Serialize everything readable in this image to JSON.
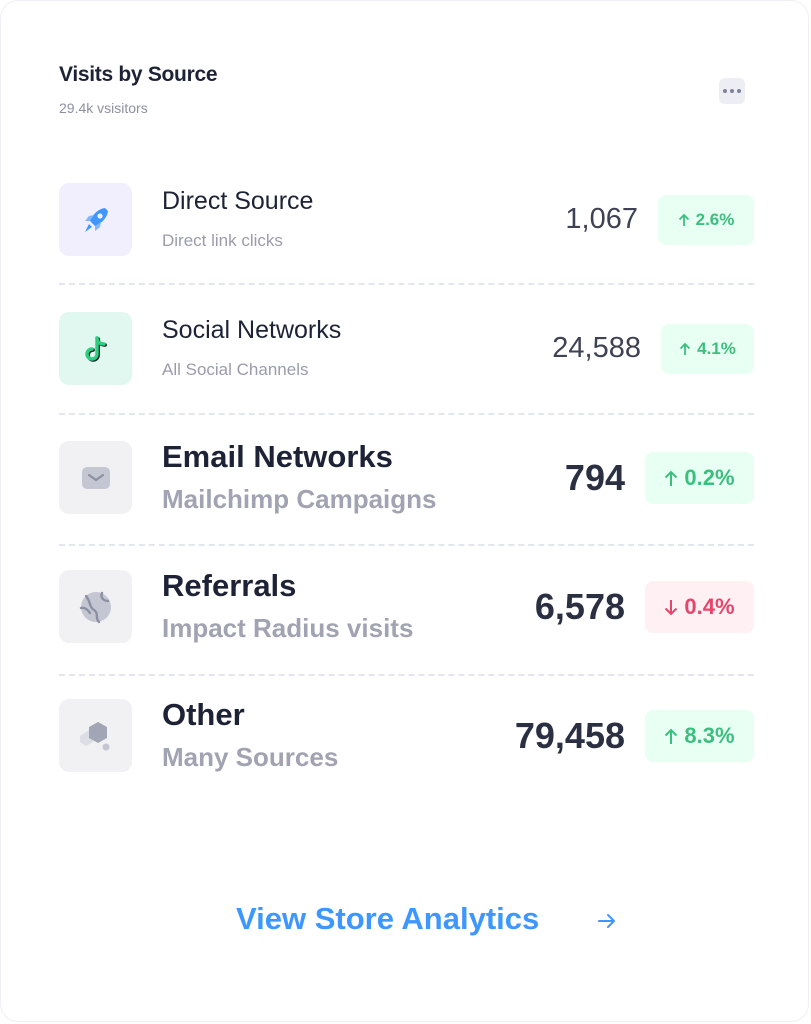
{
  "header": {
    "title": "Visits by Source",
    "subtitle": "29.4k vsisitors",
    "menu_icon": "more-horizontal-icon"
  },
  "sources": [
    {
      "icon": "rocket-icon",
      "name": "Direct Source",
      "description": "Direct link clicks",
      "value": "1,067",
      "change": "2.6%",
      "trend": "up",
      "icon_bg": "#f1effe"
    },
    {
      "icon": "tiktok-icon",
      "name": "Social Networks",
      "description": "All Social Channels",
      "value": "24,588",
      "change": "4.1%",
      "trend": "up",
      "icon_bg": "#e0f8ef"
    },
    {
      "icon": "email-icon",
      "name": "Email Networks",
      "description": "Mailchimp Campaigns",
      "value": "794",
      "change": "0.2%",
      "trend": "up",
      "icon_bg": "#f1f1f4"
    },
    {
      "icon": "globe-icon",
      "name": "Referrals",
      "description": "Impact Radius visits",
      "value": "6,578",
      "change": "0.4%",
      "trend": "down",
      "icon_bg": "#f1f1f4"
    },
    {
      "icon": "cubes-icon",
      "name": "Other",
      "description": "Many Sources",
      "value": "79,458",
      "change": "8.3%",
      "trend": "up",
      "icon_bg": "#f1f1f4"
    }
  ],
  "footer": {
    "link_label": "View Store Analytics",
    "link_icon": "arrow-right-icon"
  },
  "colors": {
    "accent": "#3e97ff",
    "up": "#3cbf7e",
    "down": "#e5466b"
  }
}
